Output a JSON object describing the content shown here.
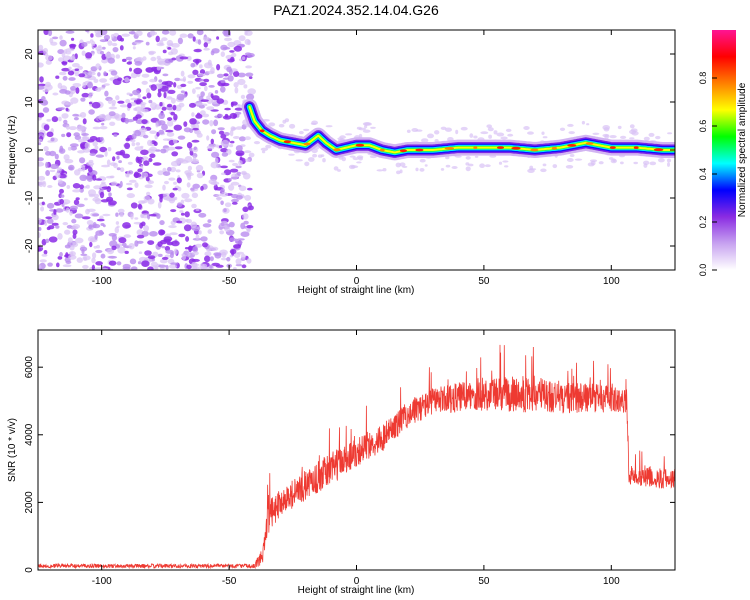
{
  "title": "PAZ1.2024.352.14.04.G26",
  "chart_data": [
    {
      "type": "heatmap",
      "xlabel": "Height of straight line (km)",
      "ylabel": "Frequency (Hz)",
      "xlim": [
        -125,
        125
      ],
      "ylim": [
        -25,
        25
      ],
      "xticks": [
        -100,
        -50,
        0,
        50,
        100
      ],
      "yticks": [
        -20,
        -10,
        0,
        10,
        20
      ],
      "grid": false,
      "noise_region_x": [
        -125,
        -42
      ],
      "signal_start_height": -42,
      "ridge": {
        "x": [
          -42,
          -40,
          -37,
          -34,
          -30,
          -25,
          -20,
          -15,
          -12,
          -8,
          -4,
          0,
          5,
          10,
          15,
          20,
          25,
          30,
          40,
          50,
          60,
          70,
          80,
          90,
          95,
          100,
          110,
          120,
          125
        ],
        "y": [
          9,
          6,
          4,
          3,
          2,
          1.5,
          1,
          3,
          1.5,
          0,
          0.5,
          1,
          1,
          0,
          -0.5,
          0,
          0,
          0,
          0.5,
          0.5,
          0.5,
          0,
          0.5,
          1.5,
          1,
          0.5,
          0.5,
          0,
          0
        ]
      },
      "colorbar": {
        "label": "Normalized spectral amplitude",
        "range": [
          0,
          1
        ],
        "ticks": [
          0.0,
          0.2,
          0.4,
          0.6,
          0.8
        ],
        "colors": [
          "#ffffff",
          "#c7a2f0",
          "#8a2be2",
          "#0000ff",
          "#00ffff",
          "#00ff00",
          "#ffff00",
          "#ff7f00",
          "#ff0000",
          "#ff1493"
        ]
      }
    },
    {
      "type": "line",
      "xlabel": "Height of straight line (km)",
      "ylabel": "SNR (10 * v/v)",
      "xlim": [
        -125,
        125
      ],
      "ylim": [
        0,
        7100
      ],
      "xticks": [
        -100,
        -50,
        0,
        50,
        100
      ],
      "yticks": [
        0,
        2000,
        4000,
        6000
      ],
      "color": "#ee3a32",
      "envelope": {
        "x": [
          -125,
          -40,
          -37,
          -35,
          -30,
          -20,
          -10,
          0,
          10,
          20,
          30,
          40,
          50,
          60,
          70,
          80,
          90,
          100,
          106,
          107,
          110,
          120,
          125
        ],
        "mean": [
          120,
          120,
          400,
          1500,
          2000,
          2500,
          3000,
          3500,
          3900,
          4600,
          5000,
          5100,
          5200,
          5200,
          5200,
          5100,
          5100,
          5050,
          5000,
          2800,
          2800,
          2700,
          2700
        ],
        "spread": [
          60,
          60,
          300,
          500,
          400,
          450,
          500,
          450,
          400,
          400,
          400,
          450,
          500,
          550,
          550,
          500,
          450,
          400,
          350,
          300,
          300,
          300,
          300
        ]
      }
    }
  ]
}
